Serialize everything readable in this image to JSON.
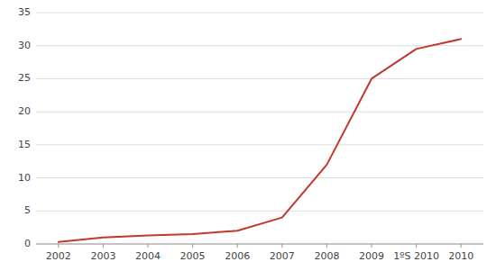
{
  "chart_data": {
    "type": "line",
    "categories": [
      "2002",
      "2003",
      "2004",
      "2005",
      "2006",
      "2007",
      "2008",
      "2009",
      "1ºS 2010",
      "2010"
    ],
    "values": [
      0.3,
      1.0,
      1.3,
      1.5,
      2.0,
      4.0,
      12.0,
      25.0,
      29.5,
      31.0
    ],
    "color": "#c0392b",
    "ylim": [
      0,
      35
    ],
    "yticks": [
      0,
      5,
      10,
      15,
      20,
      25,
      30,
      35
    ],
    "grid": true
  }
}
